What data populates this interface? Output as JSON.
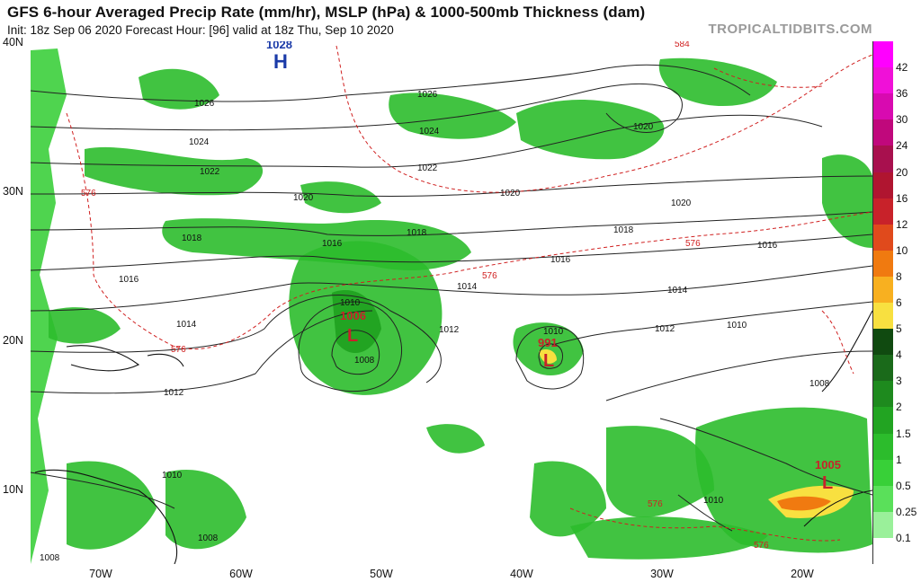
{
  "header": {
    "title": "GFS 6-hour Averaged Precip Rate (mm/hr), MSLP (hPa) & 1000-500mb Thickness (dam)",
    "subtitle": "Init: 18z Sep 06 2020   Forecast Hour: [96]   valid at 18z Thu, Sep 10 2020",
    "source": "TROPICALTIDBITS.COM"
  },
  "axes": {
    "lat_labels": [
      "40N",
      "30N",
      "20N",
      "10N"
    ],
    "lon_labels": [
      "70W",
      "60W",
      "50W",
      "40W",
      "30W",
      "20W"
    ]
  },
  "colorbar": {
    "labels": [
      "42",
      "36",
      "30",
      "24",
      "20",
      "16",
      "12",
      "10",
      "8",
      "6",
      "5",
      "4",
      "3",
      "2",
      "1.5",
      "1",
      "0.5",
      "0.25",
      "0.1"
    ],
    "colors": [
      "#ff00ff",
      "#f010d8",
      "#d80ab0",
      "#c0087c",
      "#a8104e",
      "#b01530",
      "#c8222a",
      "#e04a1c",
      "#f07a10",
      "#f8b020",
      "#f8e040",
      "#104a10",
      "#1a6a1a",
      "#1e8a1e",
      "#22a422",
      "#2cbc2c",
      "#38d038",
      "#5ae05a",
      "#9af09a"
    ]
  },
  "systems": {
    "highs": [
      {
        "label": "H",
        "value": "1028"
      }
    ],
    "lows": [
      {
        "label": "L",
        "value": "1006"
      },
      {
        "label": "L",
        "value": "991"
      },
      {
        "label": "L",
        "value": "1005"
      }
    ]
  },
  "isobars": [
    "1026",
    "1026",
    "1024",
    "1024",
    "1022",
    "1022",
    "1020",
    "1020",
    "1020",
    "1020",
    "1018",
    "1018",
    "1018",
    "1016",
    "1016",
    "1016",
    "1016",
    "1014",
    "1014",
    "1014",
    "1012",
    "1012",
    "1012",
    "1010",
    "1010",
    "1010",
    "1010",
    "1010",
    "1008",
    "1008",
    "1008",
    "1008"
  ],
  "thickness": [
    "584",
    "576",
    "576",
    "576",
    "576",
    "576",
    "576"
  ]
}
